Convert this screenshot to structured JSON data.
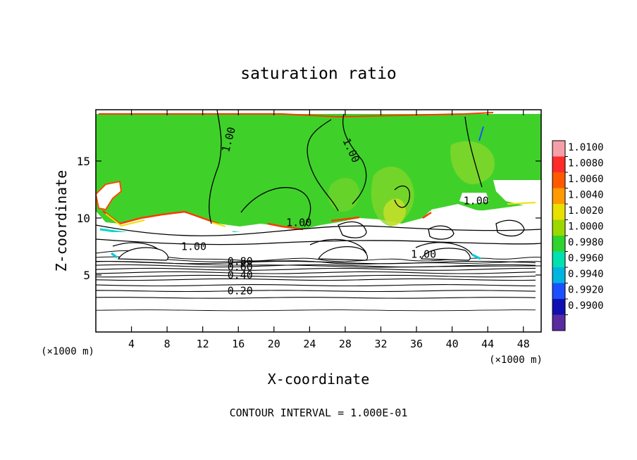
{
  "chart_data": {
    "type": "heatmap",
    "title": "saturation ratio",
    "xlabel": "X-coordinate",
    "ylabel": "Z-coordinate",
    "x_unit": "(×1000 m)",
    "y_unit": "(×1000 m)",
    "xlim": [
      0,
      50
    ],
    "ylim": [
      0,
      19.5
    ],
    "x_ticks": [
      4,
      8,
      12,
      16,
      20,
      24,
      28,
      32,
      36,
      40,
      44,
      48
    ],
    "y_ticks": [
      5,
      10,
      15
    ],
    "footer": "CONTOUR INTERVAL = 1.000E-01",
    "colorbar": {
      "levels": [
        "1.0100",
        "1.0080",
        "1.0060",
        "1.0040",
        "1.0020",
        "1.0000",
        "0.9980",
        "0.9960",
        "0.9940",
        "0.9920",
        "0.9900"
      ],
      "colors": [
        "#f5a0a8",
        "#ff2a2a",
        "#ff5a00",
        "#ff9a00",
        "#e8e000",
        "#9ad800",
        "#2fd42f",
        "#00e0b0",
        "#00b4e0",
        "#1a50ff",
        "#1010b0",
        "#5a2aa0"
      ]
    },
    "contour_labels": [
      {
        "text": "1.00",
        "x": 15.3,
        "z": 16.8,
        "angle": -75
      },
      {
        "text": "1.00",
        "x": 28.3,
        "z": 15.8,
        "angle": 65
      },
      {
        "text": "1.00",
        "x": 22.8,
        "z": 9.3,
        "angle": 0
      },
      {
        "text": "1.00",
        "x": 11.0,
        "z": 7.2,
        "angle": 0
      },
      {
        "text": "1.00",
        "x": 36.8,
        "z": 6.5,
        "angle": 0
      },
      {
        "text": "1.00",
        "x": 42.7,
        "z": 11.2,
        "angle": 0
      },
      {
        "text": "0.80",
        "x": 16.2,
        "z": 5.9,
        "angle": 0
      },
      {
        "text": "0.60",
        "x": 16.2,
        "z": 5.4,
        "angle": 0
      },
      {
        "text": "0.40",
        "x": 16.2,
        "z": 4.7,
        "angle": 0
      },
      {
        "text": "0.20",
        "x": 16.2,
        "z": 3.3,
        "angle": 0
      }
    ],
    "flat_contour_heights_km": [
      1.9,
      3.0,
      3.6,
      4.1,
      4.6,
      4.9,
      5.2,
      5.5,
      5.8,
      6.1
    ]
  }
}
